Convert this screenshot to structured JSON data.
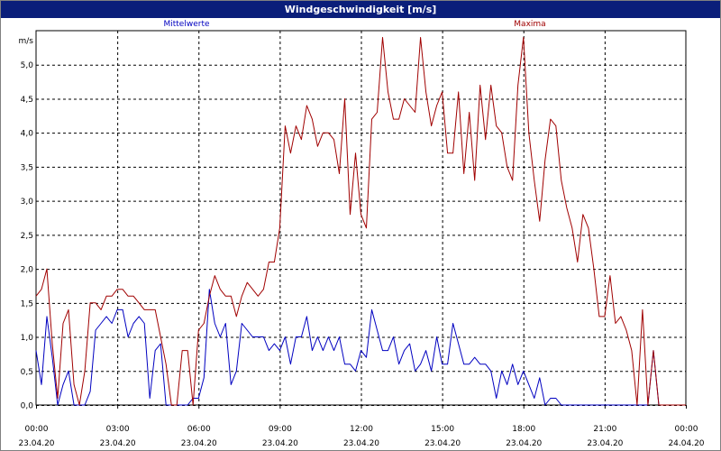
{
  "window": {
    "title": "Windgeschwindigkeit [m/s]"
  },
  "chart_data": {
    "type": "line",
    "title": "Windgeschwindigkeit [m/s]",
    "ylabel": "m/s",
    "ylim": [
      0,
      5.5
    ],
    "y_ticks": [
      "0,0",
      "0,5",
      "1,0",
      "1,5",
      "2,0",
      "2,5",
      "3,0",
      "3,5",
      "4,0",
      "4,5",
      "5,0"
    ],
    "xlim": [
      0,
      24
    ],
    "x_ticks": [
      {
        "time": "00:00",
        "date": "23.04.20"
      },
      {
        "time": "03:00",
        "date": "23.04.20"
      },
      {
        "time": "06:00",
        "date": "23.04.20"
      },
      {
        "time": "09:00",
        "date": "23.04.20"
      },
      {
        "time": "12:00",
        "date": "23.04.20"
      },
      {
        "time": "15:00",
        "date": "23.04.20"
      },
      {
        "time": "18:00",
        "date": "23.04.20"
      },
      {
        "time": "21:00",
        "date": "23.04.20"
      },
      {
        "time": "00:00",
        "date": "24.04.20"
      }
    ],
    "grid": true,
    "legend_position": "top",
    "series": [
      {
        "name": "Mittelwerte",
        "color": "#0000c0",
        "points": [
          [
            0,
            0.8
          ],
          [
            0.2,
            0.3
          ],
          [
            0.4,
            1.3
          ],
          [
            0.6,
            0.7
          ],
          [
            0.8,
            0.0
          ],
          [
            1,
            0.3
          ],
          [
            1.2,
            0.5
          ],
          [
            1.4,
            0.0
          ],
          [
            1.6,
            0.0
          ],
          [
            1.8,
            0.0
          ],
          [
            2,
            0.2
          ],
          [
            2.2,
            1.1
          ],
          [
            2.4,
            1.2
          ],
          [
            2.6,
            1.3
          ],
          [
            2.8,
            1.2
          ],
          [
            3,
            1.4
          ],
          [
            3.2,
            1.4
          ],
          [
            3.4,
            1.0
          ],
          [
            3.6,
            1.2
          ],
          [
            3.8,
            1.3
          ],
          [
            4,
            1.2
          ],
          [
            4.2,
            0.1
          ],
          [
            4.4,
            0.8
          ],
          [
            4.6,
            0.9
          ],
          [
            4.8,
            0.0
          ],
          [
            5,
            0.0
          ],
          [
            5.2,
            0.0
          ],
          [
            5.4,
            0.0
          ],
          [
            5.6,
            0.0
          ],
          [
            5.8,
            0.1
          ],
          [
            6,
            0.1
          ],
          [
            6.2,
            0.4
          ],
          [
            6.4,
            1.7
          ],
          [
            6.6,
            1.2
          ],
          [
            6.8,
            1.0
          ],
          [
            7,
            1.2
          ],
          [
            7.2,
            0.3
          ],
          [
            7.4,
            0.5
          ],
          [
            7.6,
            1.2
          ],
          [
            7.8,
            1.1
          ],
          [
            8,
            1.0
          ],
          [
            8.2,
            1.0
          ],
          [
            8.4,
            1.0
          ],
          [
            8.6,
            0.8
          ],
          [
            8.8,
            0.9
          ],
          [
            9,
            0.8
          ],
          [
            9.2,
            1.0
          ],
          [
            9.4,
            0.6
          ],
          [
            9.6,
            1.0
          ],
          [
            9.8,
            1.0
          ],
          [
            10,
            1.3
          ],
          [
            10.2,
            0.8
          ],
          [
            10.4,
            1.0
          ],
          [
            10.6,
            0.8
          ],
          [
            10.8,
            1.0
          ],
          [
            11,
            0.8
          ],
          [
            11.2,
            1.0
          ],
          [
            11.4,
            0.6
          ],
          [
            11.6,
            0.6
          ],
          [
            11.8,
            0.5
          ],
          [
            12,
            0.8
          ],
          [
            12.2,
            0.7
          ],
          [
            12.4,
            1.4
          ],
          [
            12.6,
            1.1
          ],
          [
            12.8,
            0.8
          ],
          [
            13,
            0.8
          ],
          [
            13.2,
            1.0
          ],
          [
            13.4,
            0.6
          ],
          [
            13.6,
            0.8
          ],
          [
            13.8,
            0.9
          ],
          [
            14,
            0.5
          ],
          [
            14.2,
            0.6
          ],
          [
            14.4,
            0.8
          ],
          [
            14.6,
            0.5
          ],
          [
            14.8,
            1.0
          ],
          [
            15,
            0.6
          ],
          [
            15.2,
            0.6
          ],
          [
            15.4,
            1.2
          ],
          [
            15.6,
            0.9
          ],
          [
            15.8,
            0.6
          ],
          [
            16,
            0.6
          ],
          [
            16.2,
            0.7
          ],
          [
            16.4,
            0.6
          ],
          [
            16.6,
            0.6
          ],
          [
            16.8,
            0.5
          ],
          [
            17,
            0.1
          ],
          [
            17.2,
            0.5
          ],
          [
            17.4,
            0.3
          ],
          [
            17.6,
            0.6
          ],
          [
            17.8,
            0.3
          ],
          [
            18,
            0.5
          ],
          [
            18.2,
            0.3
          ],
          [
            18.4,
            0.1
          ],
          [
            18.6,
            0.4
          ],
          [
            18.8,
            0.0
          ],
          [
            19,
            0.1
          ],
          [
            19.2,
            0.1
          ],
          [
            19.4,
            0.0
          ],
          [
            19.6,
            0.0
          ],
          [
            20,
            0.0
          ],
          [
            21,
            0.0
          ],
          [
            22,
            0.0
          ],
          [
            22.6,
            0.0
          ],
          [
            22.8,
            0.8
          ],
          [
            23,
            0.0
          ],
          [
            23.2,
            0.0
          ],
          [
            23.6,
            0.0
          ],
          [
            24,
            0.0
          ]
        ]
      },
      {
        "name": "Maxima",
        "color": "#a00000",
        "points": [
          [
            0,
            1.6
          ],
          [
            0.2,
            1.7
          ],
          [
            0.4,
            2.0
          ],
          [
            0.6,
            0.9
          ],
          [
            0.8,
            0.1
          ],
          [
            1,
            1.2
          ],
          [
            1.2,
            1.4
          ],
          [
            1.4,
            0.3
          ],
          [
            1.6,
            0.0
          ],
          [
            1.8,
            0.5
          ],
          [
            2,
            1.5
          ],
          [
            2.2,
            1.5
          ],
          [
            2.4,
            1.4
          ],
          [
            2.6,
            1.6
          ],
          [
            2.8,
            1.6
          ],
          [
            3,
            1.7
          ],
          [
            3.2,
            1.7
          ],
          [
            3.4,
            1.6
          ],
          [
            3.6,
            1.6
          ],
          [
            3.8,
            1.5
          ],
          [
            4,
            1.4
          ],
          [
            4.2,
            1.4
          ],
          [
            4.4,
            1.4
          ],
          [
            4.6,
            1.0
          ],
          [
            4.8,
            0.6
          ],
          [
            5,
            0.0
          ],
          [
            5.2,
            0.0
          ],
          [
            5.4,
            0.8
          ],
          [
            5.6,
            0.8
          ],
          [
            5.8,
            0.0
          ],
          [
            6,
            1.1
          ],
          [
            6.2,
            1.2
          ],
          [
            6.4,
            1.6
          ],
          [
            6.6,
            1.9
          ],
          [
            6.8,
            1.7
          ],
          [
            7,
            1.6
          ],
          [
            7.2,
            1.6
          ],
          [
            7.4,
            1.3
          ],
          [
            7.6,
            1.6
          ],
          [
            7.8,
            1.8
          ],
          [
            8,
            1.7
          ],
          [
            8.2,
            1.6
          ],
          [
            8.4,
            1.7
          ],
          [
            8.6,
            2.1
          ],
          [
            8.8,
            2.1
          ],
          [
            9,
            2.6
          ],
          [
            9.2,
            4.1
          ],
          [
            9.4,
            3.7
          ],
          [
            9.6,
            4.1
          ],
          [
            9.8,
            3.9
          ],
          [
            10,
            4.4
          ],
          [
            10.2,
            4.2
          ],
          [
            10.4,
            3.8
          ],
          [
            10.6,
            4.0
          ],
          [
            10.8,
            4.0
          ],
          [
            11,
            3.9
          ],
          [
            11.2,
            3.4
          ],
          [
            11.4,
            4.5
          ],
          [
            11.6,
            2.8
          ],
          [
            11.8,
            3.7
          ],
          [
            12,
            2.8
          ],
          [
            12.2,
            2.6
          ],
          [
            12.4,
            4.2
          ],
          [
            12.6,
            4.3
          ],
          [
            12.8,
            5.4
          ],
          [
            13,
            4.6
          ],
          [
            13.2,
            4.2
          ],
          [
            13.4,
            4.2
          ],
          [
            13.6,
            4.5
          ],
          [
            13.8,
            4.4
          ],
          [
            14,
            4.3
          ],
          [
            14.2,
            5.4
          ],
          [
            14.4,
            4.6
          ],
          [
            14.6,
            4.1
          ],
          [
            14.8,
            4.4
          ],
          [
            15,
            4.6
          ],
          [
            15.2,
            3.7
          ],
          [
            15.4,
            3.7
          ],
          [
            15.6,
            4.6
          ],
          [
            15.8,
            3.4
          ],
          [
            16,
            4.3
          ],
          [
            16.2,
            3.3
          ],
          [
            16.4,
            4.7
          ],
          [
            16.6,
            3.9
          ],
          [
            16.8,
            4.7
          ],
          [
            17,
            4.1
          ],
          [
            17.2,
            4.0
          ],
          [
            17.4,
            3.5
          ],
          [
            17.6,
            3.3
          ],
          [
            17.8,
            4.7
          ],
          [
            18,
            5.4
          ],
          [
            18.2,
            4.0
          ],
          [
            18.4,
            3.3
          ],
          [
            18.6,
            2.7
          ],
          [
            18.8,
            3.6
          ],
          [
            19,
            4.2
          ],
          [
            19.2,
            4.1
          ],
          [
            19.4,
            3.3
          ],
          [
            19.6,
            2.9
          ],
          [
            19.8,
            2.6
          ],
          [
            20,
            2.1
          ],
          [
            20.2,
            2.8
          ],
          [
            20.4,
            2.6
          ],
          [
            20.6,
            2.0
          ],
          [
            20.8,
            1.3
          ],
          [
            21,
            1.3
          ],
          [
            21.2,
            1.9
          ],
          [
            21.4,
            1.2
          ],
          [
            21.6,
            1.3
          ],
          [
            21.8,
            1.1
          ],
          [
            22,
            0.8
          ],
          [
            22.2,
            0.0
          ],
          [
            22.4,
            1.4
          ],
          [
            22.6,
            0.0
          ],
          [
            22.8,
            0.8
          ],
          [
            23,
            0.0
          ],
          [
            23.5,
            0.0
          ],
          [
            24,
            0.0
          ]
        ]
      }
    ]
  }
}
